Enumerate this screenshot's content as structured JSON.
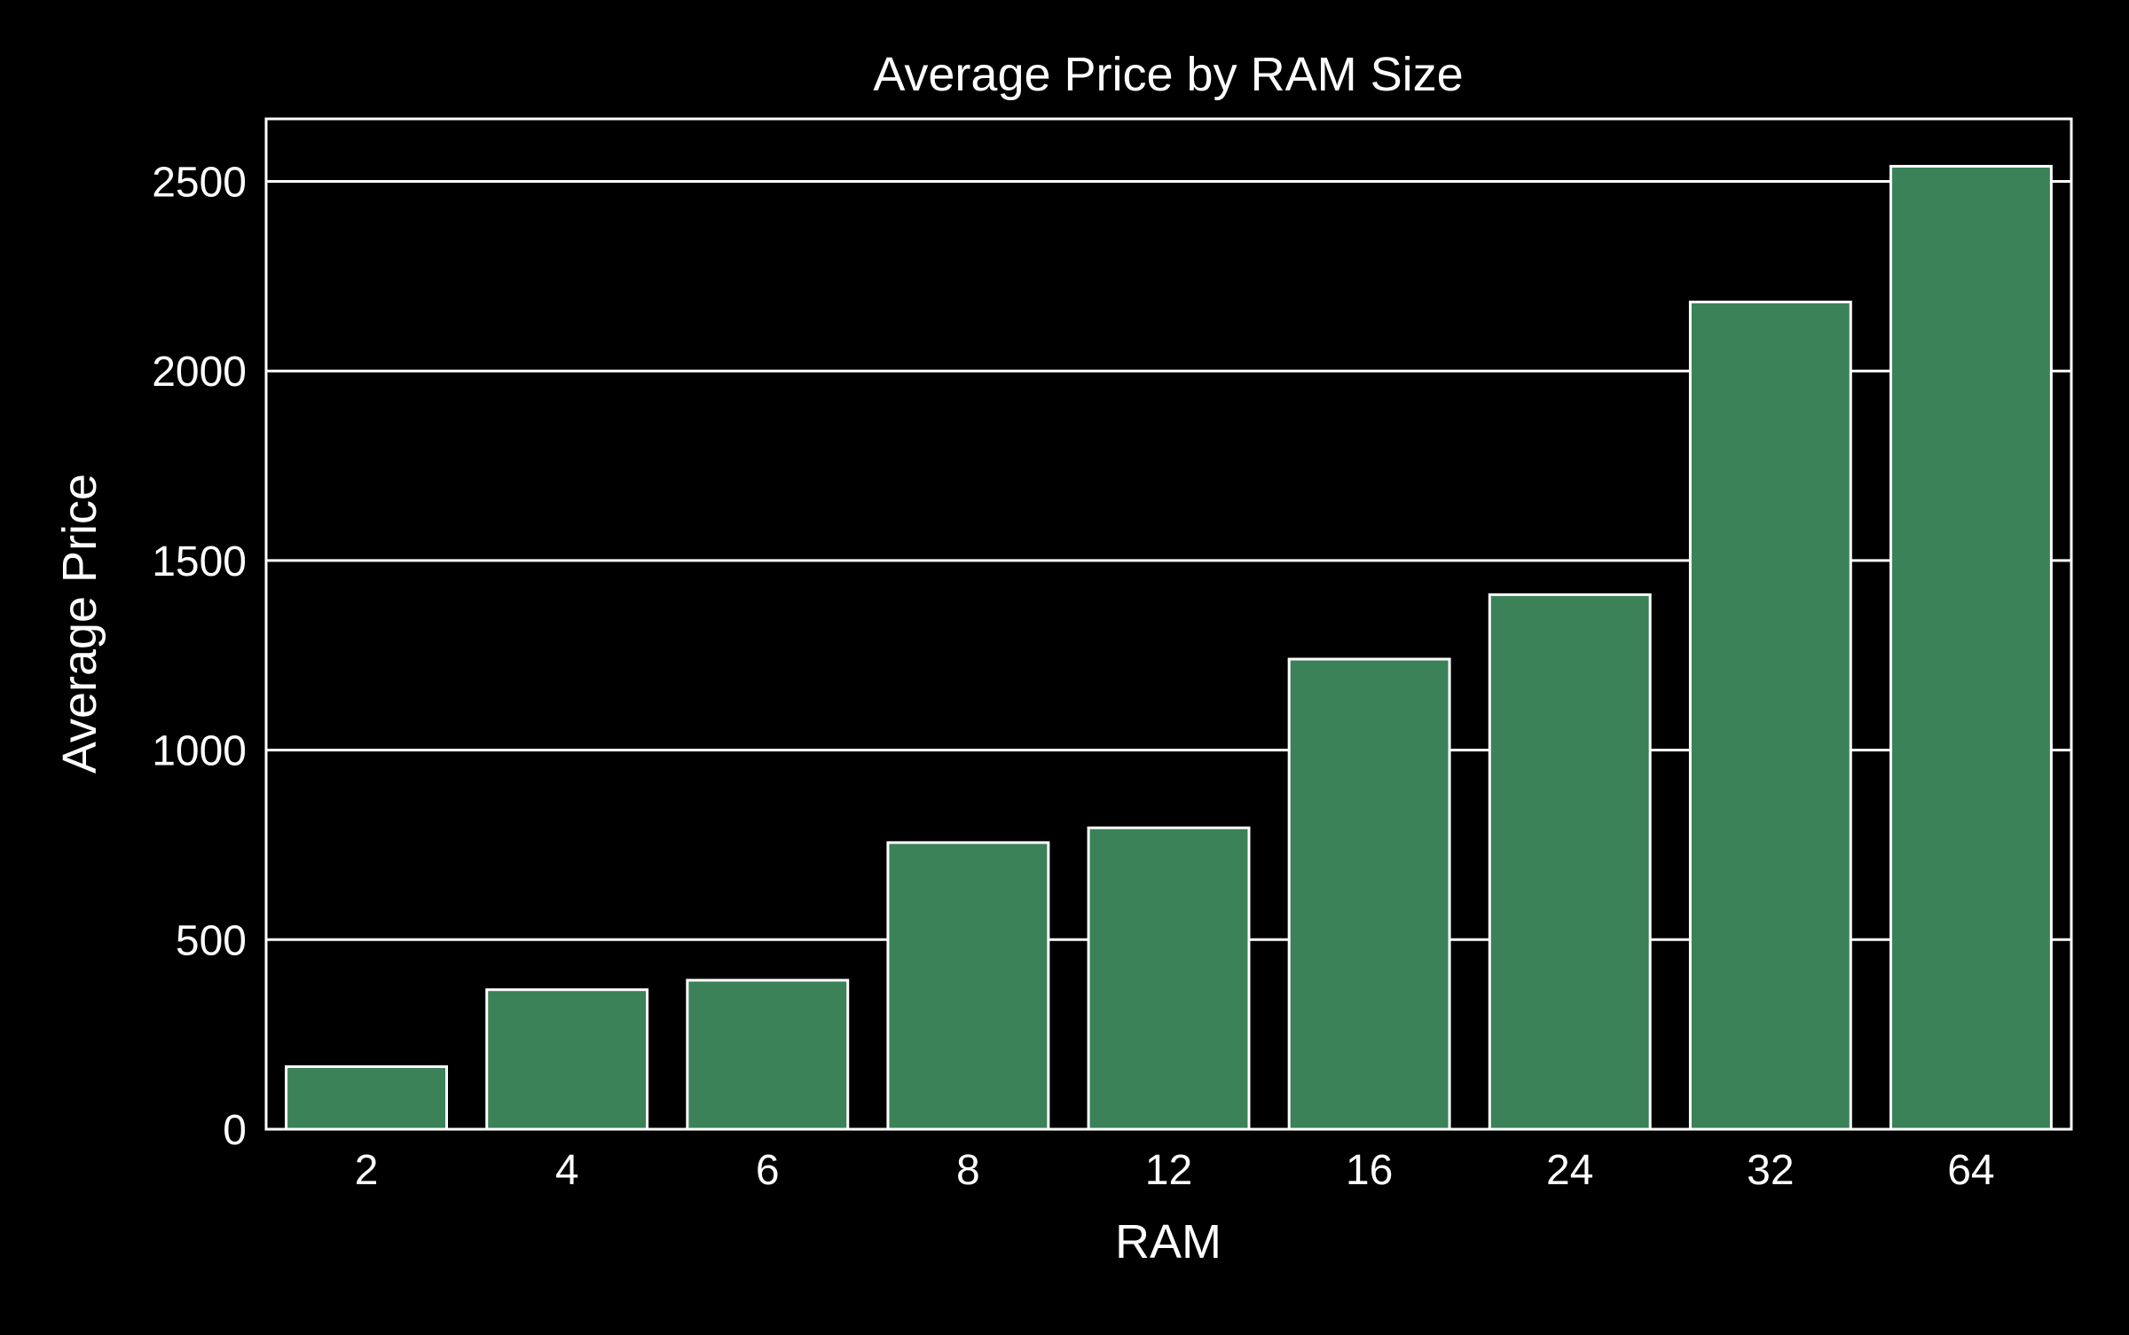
{
  "chart_data": {
    "type": "bar",
    "title": "Average Price by RAM Size",
    "xlabel": "RAM",
    "ylabel": "Average Price",
    "categories": [
      "2",
      "4",
      "6",
      "8",
      "12",
      "16",
      "24",
      "32",
      "64"
    ],
    "values": [
      165,
      368,
      393,
      756,
      795,
      1240,
      1410,
      2182,
      2540
    ],
    "ylim": [
      0,
      2665
    ],
    "yticks": [
      0,
      500,
      1000,
      1500,
      2000,
      2500
    ],
    "grid": "horizontal",
    "colors": {
      "background": "#000000",
      "bar_fill": "#3b8259",
      "bar_edge": "#ffffff",
      "grid": "#ffffff",
      "axes": "#ffffff",
      "text": "#ffffff"
    }
  }
}
